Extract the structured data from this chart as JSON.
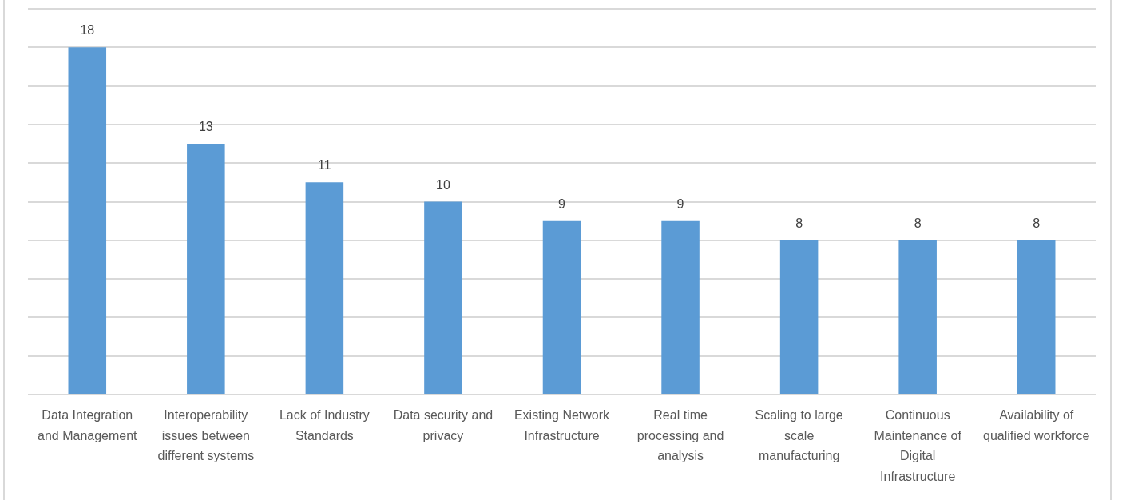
{
  "chart_data": {
    "type": "bar",
    "categories": [
      "Data Integration and Management",
      "Interoperability issues between different systems",
      "Lack of Industry Standards",
      "Data security and privacy",
      "Existing Network Infrastructure",
      "Real time processing and analysis",
      "Scaling to large scale manufacturing",
      "Continuous Maintenance of Digital Infrastructure",
      "Availability of qualified workforce"
    ],
    "values": [
      18,
      13,
      11,
      10,
      9,
      9,
      8,
      8,
      8
    ],
    "color": "#5b9bd5",
    "ylim": [
      0,
      20
    ],
    "yticks": [
      0,
      2,
      4,
      6,
      8,
      10,
      12,
      14,
      16,
      18,
      20
    ],
    "grid": "y",
    "tick_labels": "x",
    "data_labels": true
  }
}
